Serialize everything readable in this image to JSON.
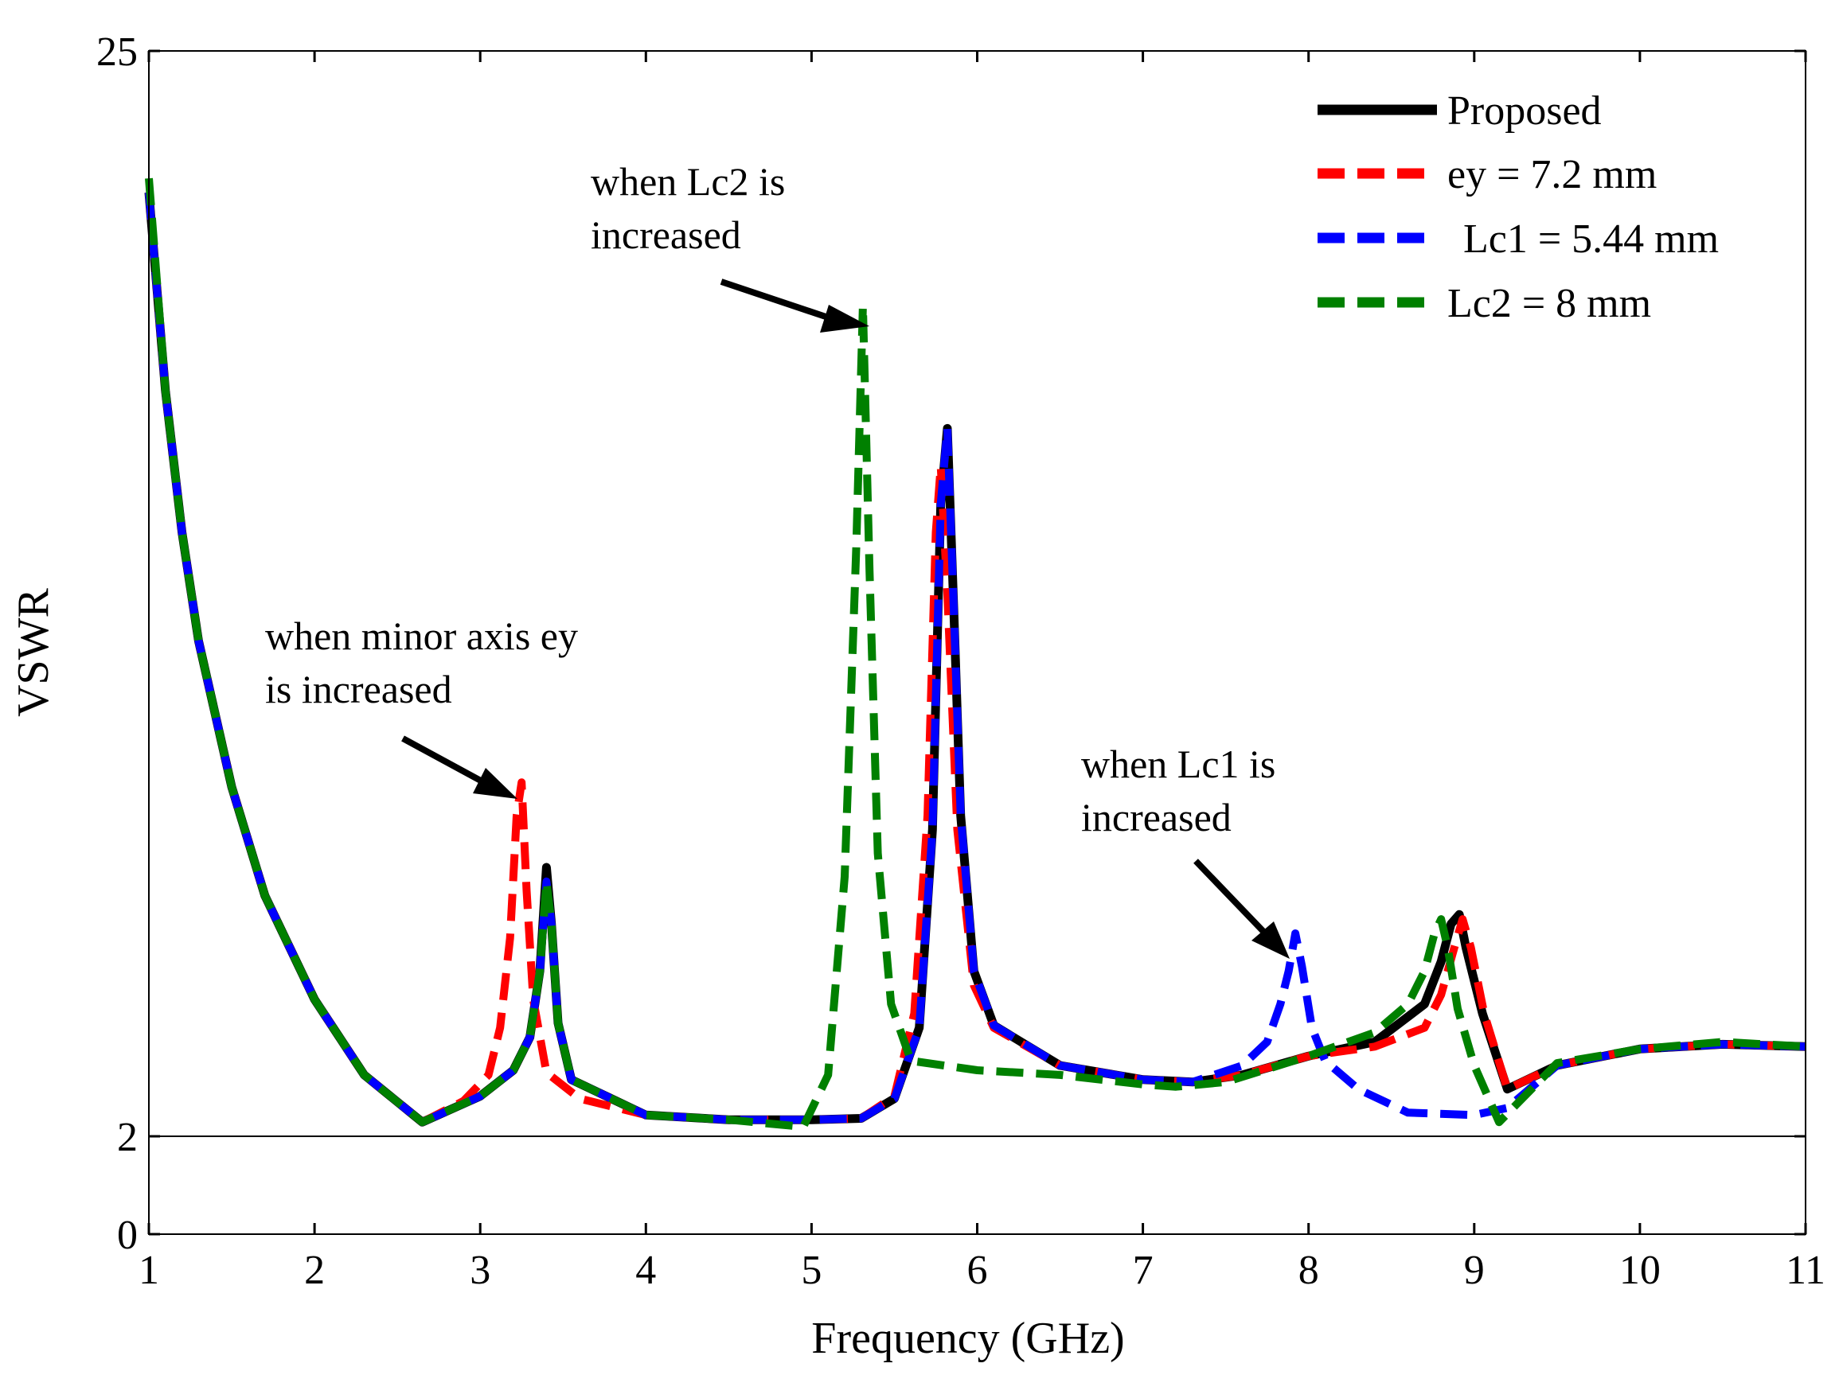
{
  "chart_data": {
    "type": "line",
    "title": "",
    "xlabel": "Frequency (GHz)",
    "ylabel": "VSWR",
    "xlim": [
      1,
      11
    ],
    "ylim": [
      0,
      25
    ],
    "xticks": [
      1,
      2,
      3,
      4,
      5,
      6,
      7,
      8,
      9,
      10,
      11
    ],
    "xtick_labels": [
      "1",
      "2",
      "3",
      "4",
      "5",
      "6",
      "7",
      "8",
      "9",
      "10",
      "11"
    ],
    "yticks": [
      0,
      2,
      25
    ],
    "ytick_labels": [
      "0",
      "2",
      "25"
    ],
    "reference_line": 2,
    "legend_position": "top-right",
    "series": [
      {
        "name": "Proposed",
        "color": "#000000",
        "style": "solid",
        "x": [
          1,
          1.1,
          1.2,
          1.3,
          1.5,
          1.7,
          2,
          2.3,
          2.65,
          3,
          3.2,
          3.3,
          3.36,
          3.4,
          3.43,
          3.47,
          3.55,
          4,
          4.5,
          5,
          5.3,
          5.5,
          5.65,
          5.73,
          5.78,
          5.82,
          5.86,
          5.9,
          5.98,
          6.1,
          6.5,
          7,
          7.3,
          7.6,
          8,
          8.4,
          8.7,
          8.8,
          8.86,
          8.91,
          8.95,
          9.05,
          9.2,
          9.5,
          10,
          10.5,
          11
        ],
        "y": [
          22,
          17.8,
          14.8,
          12.5,
          9.4,
          7.1,
          4.9,
          3.3,
          2.3,
          2.85,
          3.4,
          4.1,
          5.5,
          7.7,
          6.5,
          4.4,
          3.2,
          2.45,
          2.35,
          2.35,
          2.38,
          2.8,
          4.3,
          8.5,
          15.4,
          17,
          13,
          8.8,
          5.5,
          4.35,
          3.5,
          3.2,
          3.15,
          3.3,
          3.7,
          4.0,
          4.8,
          5.7,
          6.5,
          6.7,
          6.0,
          4.6,
          3.0,
          3.5,
          3.85,
          3.95,
          3.9
        ]
      },
      {
        "name": "ey = 7.2 mm",
        "color": "#ff0000",
        "style": "dashed",
        "x": [
          1,
          1.1,
          1.2,
          1.3,
          1.5,
          1.7,
          2,
          2.3,
          2.65,
          2.9,
          3.05,
          3.12,
          3.18,
          3.22,
          3.25,
          3.28,
          3.32,
          3.4,
          3.6,
          4,
          4.5,
          5,
          5.3,
          5.5,
          5.62,
          5.7,
          5.75,
          5.78,
          5.82,
          5.88,
          5.98,
          6.1,
          6.5,
          7,
          7.3,
          7.6,
          8,
          8.4,
          8.7,
          8.8,
          8.88,
          8.93,
          8.98,
          9.06,
          9.2,
          9.5,
          10,
          10.5,
          11
        ],
        "y": [
          22,
          17.8,
          14.8,
          12.5,
          9.4,
          7.1,
          4.9,
          3.3,
          2.3,
          2.75,
          3.3,
          4.3,
          6.2,
          8.8,
          9.5,
          7.2,
          4.9,
          3.35,
          2.8,
          2.45,
          2.35,
          2.35,
          2.38,
          2.85,
          4.6,
          8.8,
          14.8,
          16.2,
          13.5,
          8.5,
          5.2,
          4.3,
          3.5,
          3.2,
          3.15,
          3.3,
          3.7,
          3.9,
          4.3,
          5.0,
          6.0,
          6.6,
          6.0,
          4.6,
          3.0,
          3.5,
          3.85,
          3.95,
          3.9
        ]
      },
      {
        "name": "Lc1 = 5.44 mm",
        "color": "#0000ff",
        "style": "dashed",
        "x": [
          1,
          1.1,
          1.2,
          1.3,
          1.5,
          1.7,
          2,
          2.3,
          2.65,
          3,
          3.2,
          3.3,
          3.36,
          3.4,
          3.43,
          3.47,
          3.55,
          4,
          4.5,
          5,
          5.3,
          5.5,
          5.65,
          5.73,
          5.78,
          5.82,
          5.86,
          5.9,
          5.98,
          6.1,
          6.5,
          7,
          7.3,
          7.6,
          7.75,
          7.83,
          7.88,
          7.92,
          7.96,
          8.02,
          8.1,
          8.3,
          8.6,
          9,
          9.2,
          9.5,
          10,
          10.5,
          11
        ],
        "y": [
          22,
          17.8,
          14.8,
          12.5,
          9.4,
          7.1,
          4.9,
          3.3,
          2.3,
          2.85,
          3.4,
          4.1,
          5.5,
          7.4,
          6.5,
          4.4,
          3.2,
          2.45,
          2.35,
          2.35,
          2.38,
          2.8,
          4.3,
          8.5,
          15.4,
          17,
          13,
          8.8,
          5.5,
          4.35,
          3.5,
          3.2,
          3.15,
          3.5,
          4.0,
          4.8,
          5.5,
          6.3,
          5.6,
          4.3,
          3.6,
          3.0,
          2.5,
          2.45,
          2.6,
          3.5,
          3.85,
          3.95,
          3.9
        ]
      },
      {
        "name": "Lc2 = 8 mm",
        "color": "#008000",
        "style": "dashed",
        "x": [
          1,
          1.1,
          1.2,
          1.3,
          1.5,
          1.7,
          2,
          2.3,
          2.65,
          3,
          3.2,
          3.3,
          3.36,
          3.4,
          3.43,
          3.47,
          3.55,
          4,
          4.5,
          4.95,
          5.1,
          5.2,
          5.27,
          5.31,
          5.35,
          5.4,
          5.48,
          5.6,
          6,
          6.5,
          7,
          7.2,
          7.5,
          8,
          8.4,
          8.6,
          8.7,
          8.76,
          8.8,
          8.84,
          8.9,
          9,
          9.15,
          9.5,
          10,
          10.5,
          11
        ],
        "y": [
          22.3,
          17.8,
          14.8,
          12.5,
          9.4,
          7.1,
          4.9,
          3.3,
          2.3,
          2.85,
          3.4,
          4.1,
          5.5,
          7.4,
          6.5,
          4.4,
          3.2,
          2.45,
          2.35,
          2.2,
          3.3,
          7.5,
          14.5,
          19.6,
          14,
          8.0,
          4.8,
          3.6,
          3.4,
          3.3,
          3.1,
          3.05,
          3.15,
          3.7,
          4.2,
          4.8,
          5.5,
          6.3,
          6.6,
          6.0,
          4.7,
          3.5,
          2.3,
          3.55,
          3.85,
          4.0,
          3.9
        ]
      }
    ],
    "annotations": [
      {
        "lines": [
          "when Lc2 is",
          "increased"
        ]
      },
      {
        "lines": [
          "when minor axis ey",
          "is increased"
        ]
      },
      {
        "lines": [
          "when Lc1 is",
          "increased"
        ]
      }
    ]
  }
}
